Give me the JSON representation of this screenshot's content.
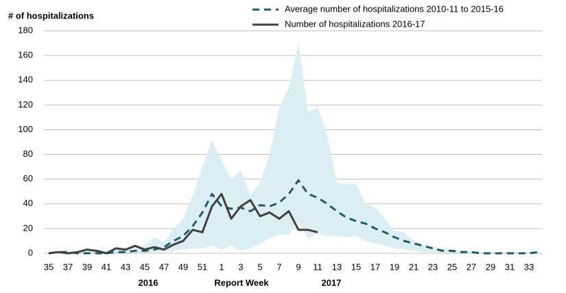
{
  "chart_data": {
    "type": "line",
    "ylabel": "# of hospitalizations",
    "xlabel": "Report Week",
    "year_labels": [
      "2016",
      "2017"
    ],
    "categories": [
      "35",
      null,
      "37",
      null,
      "39",
      null,
      "41",
      null,
      "43",
      null,
      "45",
      null,
      "47",
      null,
      "49",
      null,
      "51",
      null,
      "1",
      null,
      "3",
      null,
      "5",
      null,
      "7",
      null,
      "9",
      null,
      "11",
      null,
      "13",
      null,
      "15",
      null,
      "17",
      null,
      "19",
      null,
      "21",
      null,
      "23",
      null,
      "25",
      null,
      "27",
      null,
      "29",
      null,
      "31",
      null,
      "33",
      null
    ],
    "ylim": [
      0,
      180
    ],
    "yticks": [
      0,
      20,
      40,
      60,
      80,
      100,
      120,
      140,
      160,
      180
    ],
    "grid": true,
    "band": {
      "color": "#dbeef3",
      "high": [
        0,
        1,
        1,
        1,
        2,
        2,
        2,
        3,
        3,
        4,
        6,
        13,
        9,
        20,
        28,
        47,
        70,
        92,
        75,
        60,
        67,
        47,
        57,
        80,
        118,
        134,
        170,
        114,
        118,
        95,
        57,
        56,
        56,
        40,
        37,
        28,
        18,
        17,
        10,
        7,
        5,
        4,
        3,
        2,
        2,
        1,
        1,
        1,
        1,
        1,
        1,
        1
      ],
      "low": [
        0,
        0,
        0,
        0,
        0,
        0,
        0,
        0,
        0,
        0,
        0,
        1,
        1,
        2,
        3,
        4,
        4,
        6,
        3,
        6,
        2,
        4,
        8,
        12,
        15,
        15,
        26,
        12,
        16,
        14,
        14,
        13,
        14,
        10,
        8,
        6,
        4,
        3,
        2,
        1,
        1,
        1,
        0,
        0,
        0,
        0,
        0,
        0,
        0,
        0,
        0,
        0
      ]
    },
    "series": [
      {
        "name": "Average number of hospitalizations 2010-11 to 2015-16",
        "color": "#215968",
        "dashed": true,
        "values": [
          0,
          1,
          1,
          0,
          0,
          0,
          0,
          1,
          1,
          2,
          2,
          3,
          5,
          10,
          14,
          22,
          33,
          48,
          38,
          36,
          37,
          34,
          39,
          38,
          41,
          48,
          59,
          48,
          45,
          40,
          34,
          29,
          26,
          24,
          20,
          17,
          13,
          10,
          8,
          6,
          4,
          2,
          2,
          1,
          1,
          0,
          0,
          0,
          0,
          0,
          0,
          1
        ]
      },
      {
        "name": "Number of hospitalizations 2016-17",
        "color": "#404040",
        "dashed": false,
        "values": [
          0,
          1,
          0,
          1,
          3,
          2,
          0,
          4,
          3,
          6,
          3,
          5,
          3,
          7,
          10,
          19,
          17,
          38,
          48,
          28,
          38,
          43,
          30,
          33,
          28,
          34,
          19,
          19,
          17,
          null,
          null,
          null,
          null,
          null,
          null,
          null,
          null,
          null,
          null,
          null,
          null,
          null,
          null,
          null,
          null,
          null,
          null,
          null,
          null,
          null,
          null,
          null
        ]
      }
    ]
  }
}
